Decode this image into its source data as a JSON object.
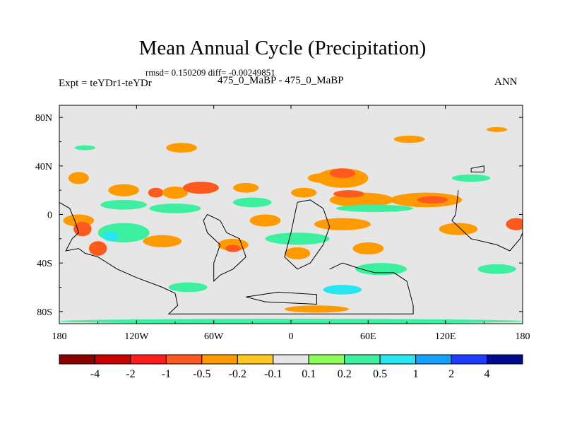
{
  "chart_data": {
    "type": "heatmap",
    "title": "Mean Annual Cycle (Precipitation)",
    "stats_line": "rmsd= 0.150209 diff= -0.00249851",
    "left_label": "Expt = teYDr1-teYDr",
    "center_label": "475_0_MaBP - 475_0_MaBP",
    "right_label": "ANN",
    "xlim": [
      -180,
      180
    ],
    "ylim": [
      -90,
      90
    ],
    "x_ticks": [
      {
        "value": -180,
        "label": "180"
      },
      {
        "value": -120,
        "label": "120W"
      },
      {
        "value": -60,
        "label": "60W"
      },
      {
        "value": 0,
        "label": "0"
      },
      {
        "value": 60,
        "label": "60E"
      },
      {
        "value": 120,
        "label": "120E"
      },
      {
        "value": 180,
        "label": "180"
      }
    ],
    "y_ticks": [
      {
        "value": 80,
        "label": "80N"
      },
      {
        "value": 40,
        "label": "40N"
      },
      {
        "value": 0,
        "label": "0"
      },
      {
        "value": -40,
        "label": "40S"
      },
      {
        "value": -80,
        "label": "80S"
      }
    ],
    "colorbar": {
      "colors": [
        "#8b0000",
        "#c80000",
        "#ff1e1e",
        "#ff5a1e",
        "#ff9b00",
        "#ffc81e",
        "#e6e6e6",
        "#8cff5a",
        "#3cf0a0",
        "#28e6f0",
        "#14a0ff",
        "#1e3cff",
        "#000a8c"
      ],
      "labels": [
        "-4",
        "-2",
        "-1",
        "-0.5",
        "-0.2",
        "-0.1",
        "0.1",
        "0.2",
        "0.5",
        "1",
        "2",
        "4"
      ]
    },
    "background_color": "#e6e6e6",
    "patches": [
      {
        "lon": -165,
        "lat": 30,
        "rx": 8,
        "ry": 5,
        "level": "-0.2"
      },
      {
        "lon": -130,
        "lat": 20,
        "rx": 12,
        "ry": 5,
        "level": "-0.2"
      },
      {
        "lon": -105,
        "lat": 18,
        "rx": 6,
        "ry": 4,
        "level": "-0.5"
      },
      {
        "lon": -90,
        "lat": 18,
        "rx": 10,
        "ry": 5,
        "level": "-0.2"
      },
      {
        "lon": -70,
        "lat": 22,
        "rx": 14,
        "ry": 5,
        "level": "-0.5"
      },
      {
        "lon": -35,
        "lat": 22,
        "rx": 10,
        "ry": 4,
        "level": "-0.2"
      },
      {
        "lon": 25,
        "lat": 30,
        "rx": 12,
        "ry": 4,
        "level": "-0.2"
      },
      {
        "lon": 10,
        "lat": 18,
        "rx": 10,
        "ry": 4,
        "level": "-0.2"
      },
      {
        "lon": 40,
        "lat": 30,
        "rx": 20,
        "ry": 8,
        "level": "-0.2"
      },
      {
        "lon": 40,
        "lat": 34,
        "rx": 10,
        "ry": 4,
        "level": "-0.5"
      },
      {
        "lon": 55,
        "lat": 12,
        "rx": 25,
        "ry": 6,
        "level": "-0.2"
      },
      {
        "lon": 45,
        "lat": 17,
        "rx": 12,
        "ry": 3,
        "level": "-0.5"
      },
      {
        "lon": 105,
        "lat": 12,
        "rx": 28,
        "ry": 6,
        "level": "-0.2"
      },
      {
        "lon": 110,
        "lat": 12,
        "rx": 12,
        "ry": 3,
        "level": "-0.5"
      },
      {
        "lon": -85,
        "lat": 55,
        "rx": 12,
        "ry": 4,
        "level": "-0.2"
      },
      {
        "lon": 92,
        "lat": 62,
        "rx": 12,
        "ry": 3,
        "level": "-0.2"
      },
      {
        "lon": 160,
        "lat": 70,
        "rx": 8,
        "ry": 2,
        "level": "-0.2"
      },
      {
        "lon": -165,
        "lat": -5,
        "rx": 12,
        "ry": 5,
        "level": "-0.2"
      },
      {
        "lon": -162,
        "lat": -12,
        "rx": 7,
        "ry": 6,
        "level": "-0.5"
      },
      {
        "lon": -150,
        "lat": -28,
        "rx": 7,
        "ry": 6,
        "level": "-0.5"
      },
      {
        "lon": -100,
        "lat": -22,
        "rx": 15,
        "ry": 5,
        "level": "-0.2"
      },
      {
        "lon": -45,
        "lat": -25,
        "rx": 12,
        "ry": 5,
        "level": "-0.2"
      },
      {
        "lon": -45,
        "lat": -28,
        "rx": 6,
        "ry": 3,
        "level": "-0.5"
      },
      {
        "lon": -20,
        "lat": -5,
        "rx": 12,
        "ry": 5,
        "level": "-0.2"
      },
      {
        "lon": 40,
        "lat": -8,
        "rx": 22,
        "ry": 5,
        "level": "-0.2"
      },
      {
        "lon": 130,
        "lat": -12,
        "rx": 15,
        "ry": 5,
        "level": "-0.2"
      },
      {
        "lon": 175,
        "lat": -8,
        "rx": 8,
        "ry": 5,
        "level": "-0.5"
      },
      {
        "lon": 60,
        "lat": -28,
        "rx": 12,
        "ry": 5,
        "level": "-0.2"
      },
      {
        "lon": 5,
        "lat": -32,
        "rx": 10,
        "ry": 5,
        "level": "-0.2"
      },
      {
        "lon": 20,
        "lat": -78,
        "rx": 25,
        "ry": 3,
        "level": "-0.2"
      },
      {
        "lon": -130,
        "lat": 8,
        "rx": 18,
        "ry": 4,
        "level": "0.2"
      },
      {
        "lon": -90,
        "lat": 5,
        "rx": 20,
        "ry": 4,
        "level": "0.2"
      },
      {
        "lon": -30,
        "lat": 10,
        "rx": 15,
        "ry": 4,
        "level": "0.2"
      },
      {
        "lon": 65,
        "lat": 5,
        "rx": 30,
        "ry": 3,
        "level": "0.2"
      },
      {
        "lon": 140,
        "lat": 30,
        "rx": 15,
        "ry": 3,
        "level": "0.2"
      },
      {
        "lon": -160,
        "lat": 55,
        "rx": 8,
        "ry": 2,
        "level": "0.2"
      },
      {
        "lon": -130,
        "lat": -15,
        "rx": 20,
        "ry": 8,
        "level": "0.2"
      },
      {
        "lon": -140,
        "lat": -18,
        "rx": 6,
        "ry": 4,
        "level": "0.5"
      },
      {
        "lon": 5,
        "lat": -20,
        "rx": 25,
        "ry": 5,
        "level": "0.2"
      },
      {
        "lon": 70,
        "lat": -45,
        "rx": 20,
        "ry": 5,
        "level": "0.2"
      },
      {
        "lon": 40,
        "lat": -62,
        "rx": 15,
        "ry": 4,
        "level": "0.5"
      },
      {
        "lon": 160,
        "lat": -45,
        "rx": 15,
        "ry": 4,
        "level": "0.2"
      },
      {
        "lon": -80,
        "lat": -60,
        "rx": 15,
        "ry": 4,
        "level": "0.2"
      },
      {
        "lon": 0,
        "lat": -88,
        "rx": 180,
        "ry": 2,
        "level": "0.2"
      }
    ],
    "coastlines": [
      [
        [
          -180,
          10
        ],
        [
          -172,
          5
        ],
        [
          -168,
          -5
        ],
        [
          -165,
          -15
        ],
        [
          -170,
          -20
        ],
        [
          -175,
          -30
        ],
        [
          -165,
          -28
        ],
        [
          -160,
          -32
        ],
        [
          -150,
          -35
        ],
        [
          -135,
          -45
        ],
        [
          -120,
          -52
        ],
        [
          -100,
          -60
        ],
        [
          -90,
          -65
        ],
        [
          -88,
          -75
        ],
        [
          -95,
          -82
        ],
        [
          95,
          -82
        ],
        [
          95,
          -75
        ],
        [
          90,
          -55
        ],
        [
          80,
          -48
        ],
        [
          65,
          -48
        ],
        [
          55,
          -45
        ],
        [
          40,
          -40
        ],
        [
          30,
          -45
        ]
      ],
      [
        [
          -65,
          0
        ],
        [
          -55,
          -5
        ],
        [
          -50,
          -15
        ],
        [
          -40,
          -20
        ],
        [
          -35,
          -35
        ],
        [
          -45,
          -45
        ],
        [
          -55,
          -50
        ],
        [
          -60,
          -55
        ],
        [
          -60,
          -40
        ],
        [
          -55,
          -25
        ],
        [
          -65,
          -15
        ],
        [
          -68,
          -5
        ],
        [
          -65,
          0
        ]
      ],
      [
        [
          5,
          10
        ],
        [
          15,
          12
        ],
        [
          25,
          5
        ],
        [
          30,
          -10
        ],
        [
          25,
          -25
        ],
        [
          15,
          -40
        ],
        [
          5,
          -45
        ],
        [
          -5,
          -35
        ],
        [
          0,
          -15
        ],
        [
          5,
          10
        ]
      ],
      [
        [
          140,
          38
        ],
        [
          150,
          40
        ],
        [
          150,
          35
        ],
        [
          140,
          35
        ],
        [
          140,
          38
        ]
      ],
      [
        [
          130,
          20
        ],
        [
          128,
          0
        ],
        [
          125,
          -5
        ],
        [
          135,
          -15
        ],
        [
          140,
          -20
        ],
        [
          160,
          -25
        ],
        [
          170,
          -30
        ],
        [
          178,
          -20
        ],
        [
          180,
          -15
        ]
      ],
      [
        [
          -35,
          -68
        ],
        [
          -10,
          -64
        ],
        [
          20,
          -66
        ],
        [
          20,
          -74
        ],
        [
          -20,
          -72
        ],
        [
          -35,
          -68
        ]
      ]
    ]
  }
}
